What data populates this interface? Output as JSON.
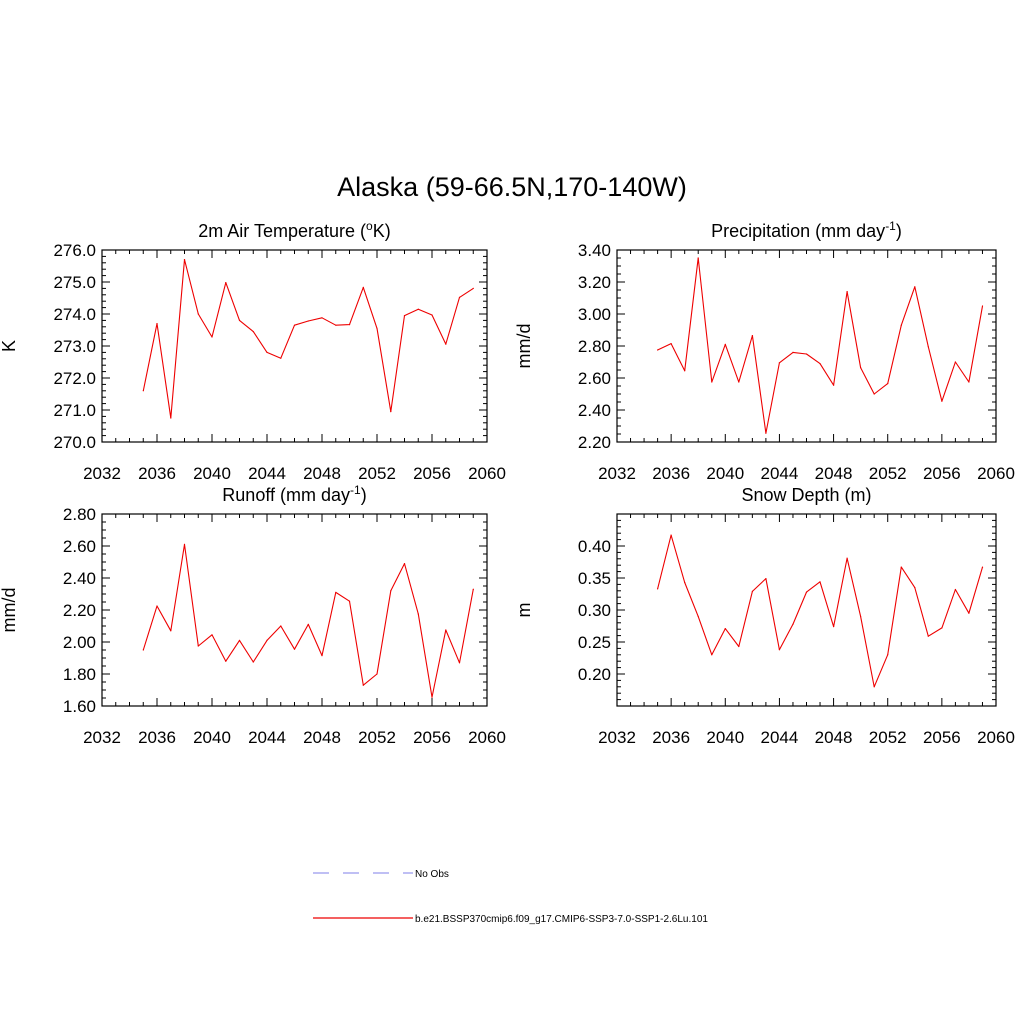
{
  "page_title": "Alaska (59-66.5N,170-140W)",
  "legend": {
    "no_obs_label": "No Obs",
    "no_obs_color": "#9999ee",
    "model_label": "b.e21.BSSP370cmip6.f09_g17.CMIP6-SSP3-7.0-SSP1-2.6Lu.101",
    "model_color": "#ee0000"
  },
  "chart_data": [
    {
      "id": "temperature",
      "type": "line",
      "title_main": "2m Air Temperature (",
      "title_sup": "o",
      "title_tail": "K)",
      "ylabel": "K",
      "xlim": [
        2032,
        2060
      ],
      "x_ticks": [
        2032,
        2036,
        2040,
        2044,
        2048,
        2052,
        2056,
        2060
      ],
      "ylim": [
        270.0,
        276.0
      ],
      "y_ticks": [
        270.0,
        271.0,
        272.0,
        273.0,
        274.0,
        275.0,
        276.0
      ],
      "y_decimals": 1,
      "y_minor_per_major": 5,
      "color": "#ee0000",
      "x": [
        2035,
        2036,
        2037,
        2038,
        2039,
        2040,
        2041,
        2042,
        2043,
        2044,
        2045,
        2046,
        2047,
        2048,
        2049,
        2050,
        2051,
        2052,
        2053,
        2054,
        2055,
        2056,
        2057,
        2058,
        2059
      ],
      "values": [
        271.6,
        273.7,
        270.75,
        275.7,
        274.0,
        273.28,
        274.98,
        273.8,
        273.45,
        272.8,
        272.62,
        273.65,
        273.78,
        273.88,
        273.65,
        273.67,
        274.83,
        273.55,
        270.95,
        273.95,
        274.15,
        273.97,
        273.06,
        274.52,
        274.8
      ]
    },
    {
      "id": "precipitation",
      "type": "line",
      "title_main": "Precipitation (mm day",
      "title_sup": "-1",
      "title_tail": ")",
      "ylabel": "mm/d",
      "xlim": [
        2032,
        2060
      ],
      "x_ticks": [
        2032,
        2036,
        2040,
        2044,
        2048,
        2052,
        2056,
        2060
      ],
      "ylim": [
        2.2,
        3.4
      ],
      "y_ticks": [
        2.2,
        2.4,
        2.6,
        2.8,
        3.0,
        3.2,
        3.4
      ],
      "y_decimals": 2,
      "y_minor_per_major": 4,
      "color": "#ee0000",
      "x": [
        2035,
        2036,
        2037,
        2038,
        2039,
        2040,
        2041,
        2042,
        2043,
        2044,
        2045,
        2046,
        2047,
        2048,
        2049,
        2050,
        2051,
        2052,
        2053,
        2054,
        2055,
        2056,
        2057,
        2058,
        2059
      ],
      "values": [
        2.775,
        2.815,
        2.645,
        3.35,
        2.575,
        2.81,
        2.575,
        2.865,
        2.255,
        2.695,
        2.76,
        2.75,
        2.69,
        2.555,
        3.14,
        2.665,
        2.5,
        2.565,
        2.93,
        3.17,
        2.795,
        2.455,
        2.7,
        2.575,
        3.05
      ]
    },
    {
      "id": "runoff",
      "type": "line",
      "title_main": "Runoff (mm day",
      "title_sup": "-1",
      "title_tail": ")",
      "ylabel": "mm/d",
      "xlim": [
        2032,
        2060
      ],
      "x_ticks": [
        2032,
        2036,
        2040,
        2044,
        2048,
        2052,
        2056,
        2060
      ],
      "ylim": [
        1.6,
        2.8
      ],
      "y_ticks": [
        1.6,
        1.8,
        2.0,
        2.2,
        2.4,
        2.6,
        2.8
      ],
      "y_decimals": 2,
      "y_minor_per_major": 4,
      "color": "#ee0000",
      "x": [
        2035,
        2036,
        2037,
        2038,
        2039,
        2040,
        2041,
        2042,
        2043,
        2044,
        2045,
        2046,
        2047,
        2048,
        2049,
        2050,
        2051,
        2052,
        2053,
        2054,
        2055,
        2056,
        2057,
        2058,
        2059
      ],
      "values": [
        1.95,
        2.225,
        2.07,
        2.61,
        1.975,
        2.045,
        1.88,
        2.01,
        1.875,
        2.01,
        2.1,
        1.955,
        2.11,
        1.915,
        2.31,
        2.255,
        1.73,
        1.8,
        2.32,
        2.49,
        2.175,
        1.655,
        2.075,
        1.87,
        2.33
      ]
    },
    {
      "id": "snow_depth",
      "type": "line",
      "title_main": "Snow Depth (m)",
      "title_sup": "",
      "title_tail": "",
      "ylabel": "m",
      "xlim": [
        2032,
        2060
      ],
      "x_ticks": [
        2032,
        2036,
        2040,
        2044,
        2048,
        2052,
        2056,
        2060
      ],
      "ylim": [
        0.15,
        0.45
      ],
      "y_ticks": [
        0.2,
        0.25,
        0.3,
        0.35,
        0.4
      ],
      "y_decimals": 2,
      "y_minor_per_major": 5,
      "color": "#ee0000",
      "x": [
        2035,
        2036,
        2037,
        2038,
        2039,
        2040,
        2041,
        2042,
        2043,
        2044,
        2045,
        2046,
        2047,
        2048,
        2049,
        2050,
        2051,
        2052,
        2053,
        2054,
        2055,
        2056,
        2057,
        2058,
        2059
      ],
      "values": [
        0.333,
        0.417,
        0.343,
        0.29,
        0.23,
        0.271,
        0.243,
        0.329,
        0.349,
        0.238,
        0.278,
        0.328,
        0.344,
        0.274,
        0.381,
        0.29,
        0.18,
        0.23,
        0.367,
        0.335,
        0.259,
        0.272,
        0.332,
        0.295,
        0.367
      ]
    }
  ]
}
